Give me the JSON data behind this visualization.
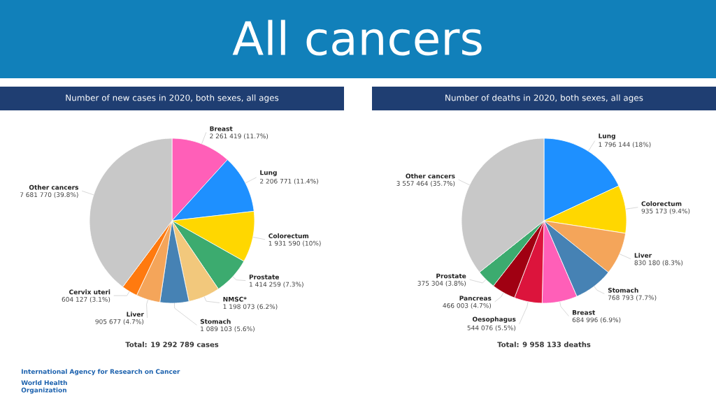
{
  "chart_data": [
    {
      "type": "pie",
      "title": "All cancers",
      "subtitle": "Number of new cases in 2020, both sexes, all ages",
      "categories": [
        "Breast",
        "Lung",
        "Colorectum",
        "Prostate",
        "NMSC*",
        "Stomach",
        "Liver",
        "Cervix uteri",
        "Other cancers"
      ],
      "values": [
        2261419,
        2206771,
        1931590,
        1414259,
        1198073,
        1089103,
        905677,
        604127,
        7681770
      ],
      "colors": [
        "#ff5fb8",
        "#1e90ff",
        "#ffd700",
        "#3cab6f",
        "#f2c87c",
        "#4682b4",
        "#f4a55a",
        "#ff7a0f",
        "#c8c8c8"
      ],
      "value_labels": [
        "2 261 419 (11.7%)",
        "2 206 771 (11.4%)",
        "1 931 590 (10%)",
        "1 414 259 (7.3%)",
        "1 198 073 (6.2%)",
        "1 089 103 (5.6%)",
        "905 677 (4.7%)",
        "604 127 (3.1%)",
        "7 681 770 (39.8%)"
      ],
      "annotations": [
        "Total: 19 292 789 cases",
        "International Agency for Research on Cancer",
        "World Health Organization"
      ]
    },
    {
      "type": "pie",
      "subtitle": "Number of deaths in 2020, both sexes, all ages",
      "categories": [
        "Lung",
        "Colorectum",
        "Liver",
        "Stomach",
        "Breast",
        "Oesophagus",
        "Pancreas",
        "Prostate",
        "Other cancers"
      ],
      "values": [
        1796144,
        935173,
        830180,
        768793,
        684996,
        544076,
        466003,
        375304,
        3557464
      ],
      "colors": [
        "#1e90ff",
        "#ffd700",
        "#f4a55a",
        "#4682b4",
        "#ff5fb8",
        "#dc143c",
        "#a00012",
        "#3cab6f",
        "#c8c8c8"
      ],
      "value_labels": [
        "1 796 144 (18%)",
        "935 173 (9.4%)",
        "830 180 (8.3%)",
        "768 793 (7.7%)",
        "684 996 (6.9%)",
        "544 076 (5.5%)",
        "466 003 (4.7%)",
        "375 304 (3.8%)",
        "3 557 464 (35.7%)"
      ],
      "annotations": [
        "Total: 9 958 133 deaths"
      ]
    }
  ]
}
